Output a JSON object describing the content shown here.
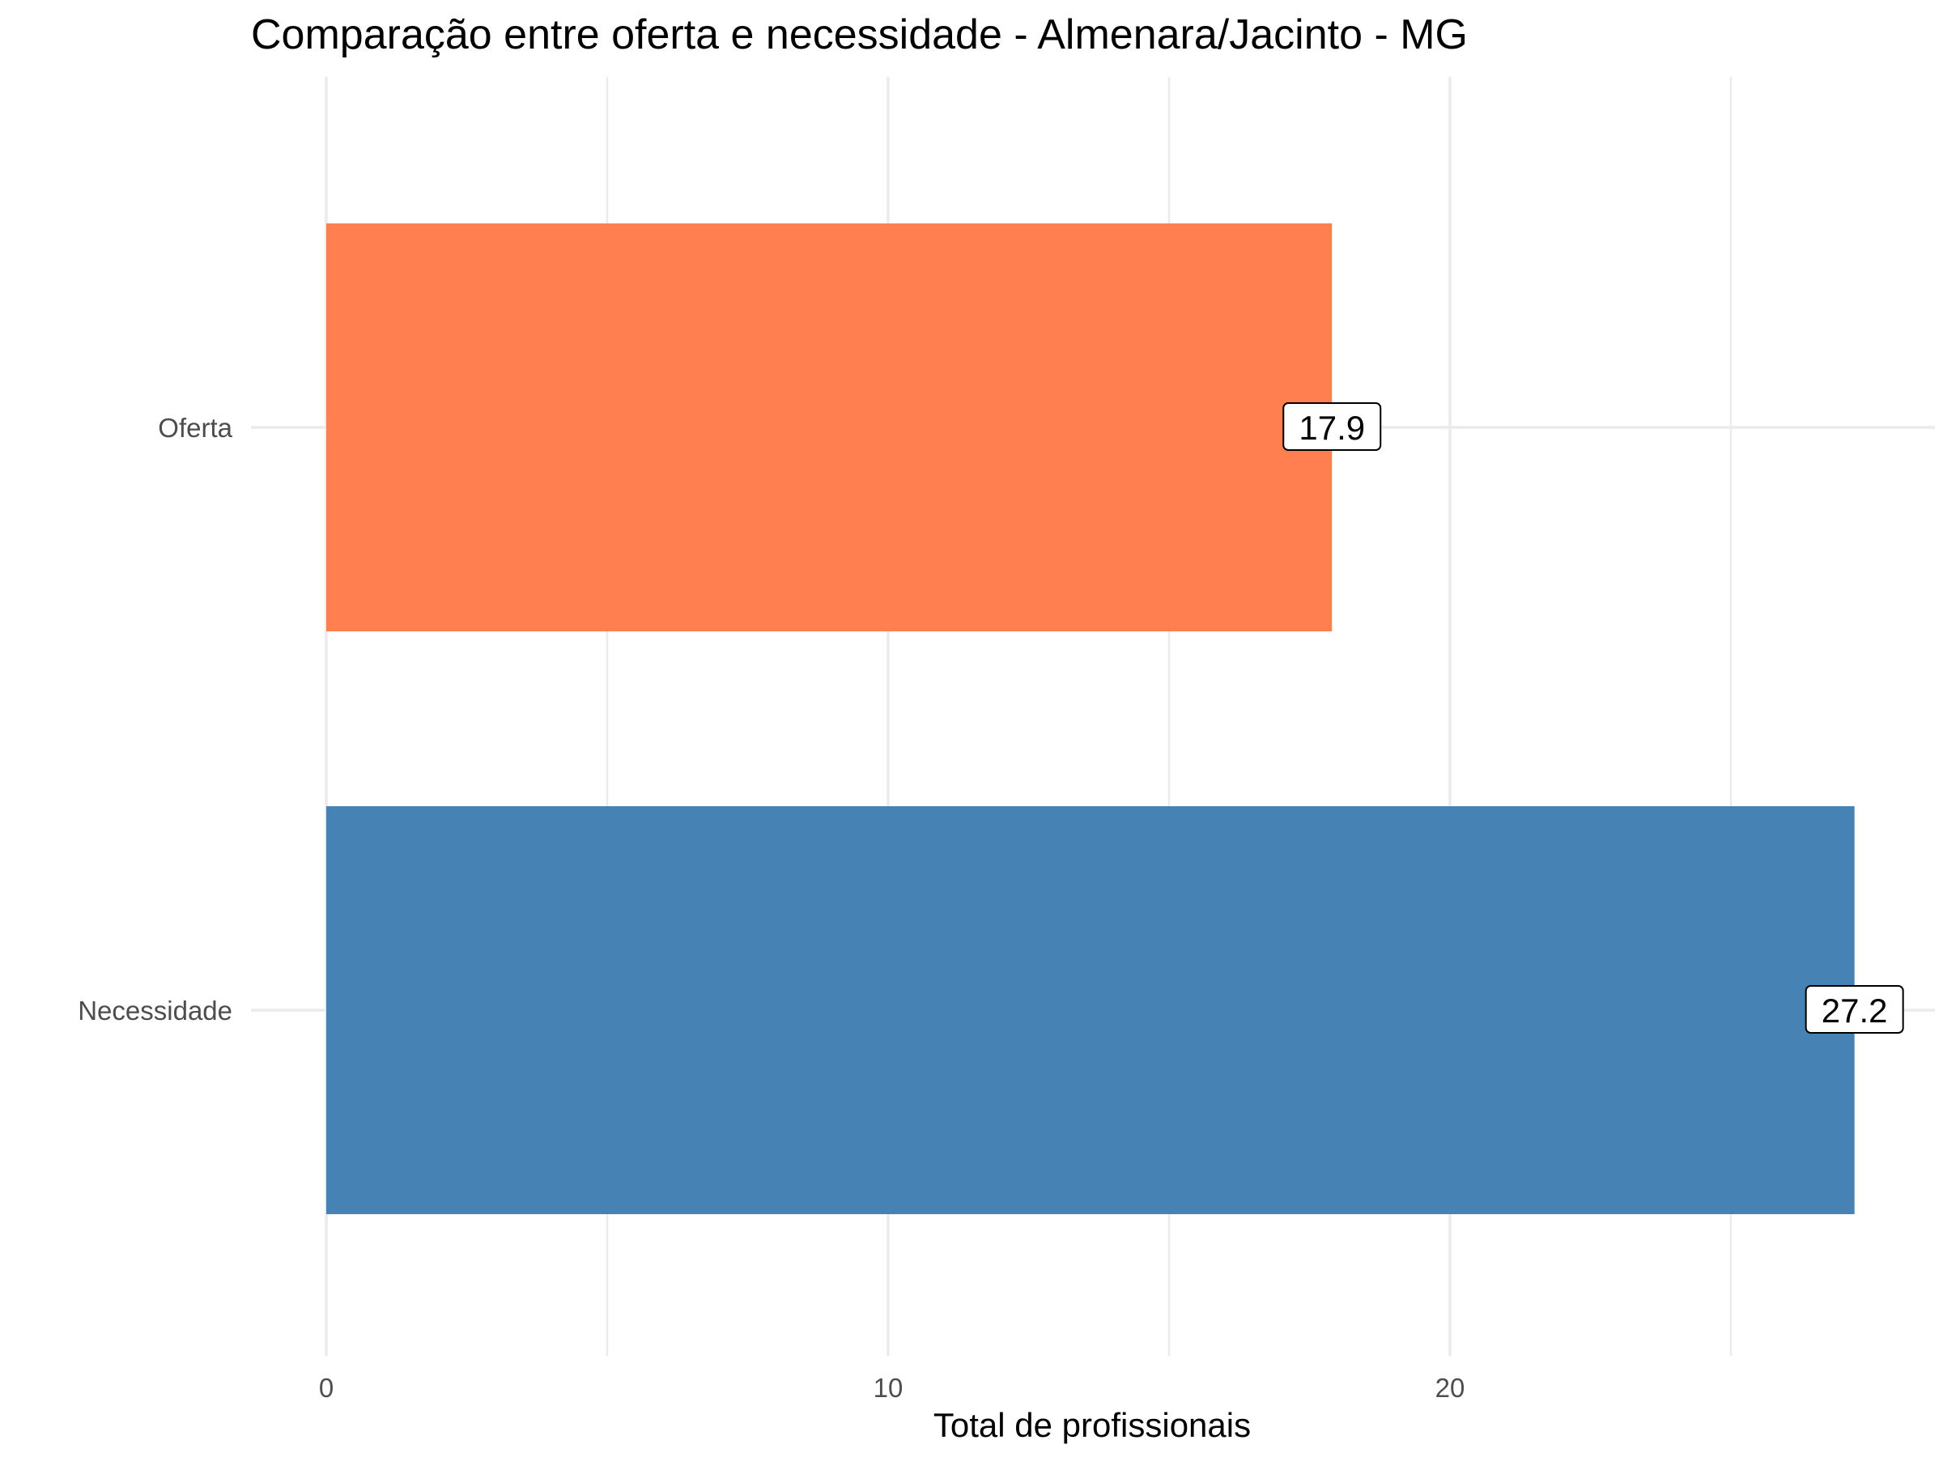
{
  "chart_data": {
    "type": "bar",
    "orientation": "horizontal",
    "title": "Comparação entre oferta e necessidade - Almenara/Jacinto - MG",
    "xlabel": "Total de profissionais",
    "ylabel": "",
    "categories": [
      "Oferta",
      "Necessidade"
    ],
    "values": [
      17.9,
      27.2
    ],
    "data_labels": [
      "17.9",
      "27.2"
    ],
    "colors": [
      "#FF7F50",
      "#4682B4"
    ],
    "x_ticks": [
      0,
      10,
      20
    ],
    "x_tick_labels": [
      "0",
      "10",
      "20"
    ],
    "xlim": [
      0,
      28
    ],
    "grid": true,
    "legend": "none"
  }
}
